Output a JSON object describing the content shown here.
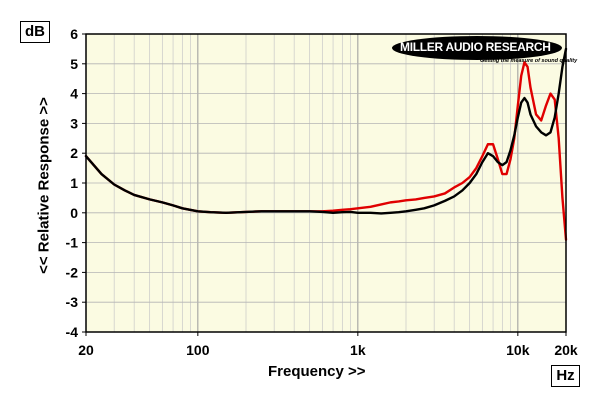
{
  "chart_data": {
    "type": "line",
    "ylabel": "<< Relative Response >>",
    "xlabel": "Frequency >>",
    "y_unit": "dB",
    "x_unit": "Hz",
    "x_scale": "log",
    "xlim": [
      20,
      20000
    ],
    "ylim": [
      -4,
      6
    ],
    "x_tick_labels": [
      {
        "value": 20,
        "label": "20"
      },
      {
        "value": 100,
        "label": "100"
      },
      {
        "value": 1000,
        "label": "1k"
      },
      {
        "value": 10000,
        "label": "10k"
      },
      {
        "value": 20000,
        "label": "20k"
      }
    ],
    "y_ticks": [
      -4,
      -3,
      -2,
      -1,
      0,
      1,
      2,
      3,
      4,
      5,
      6
    ],
    "grid": true,
    "series": [
      {
        "color": "#e00000",
        "x": [
          20,
          25,
          30,
          35,
          40,
          50,
          60,
          70,
          80,
          100,
          120,
          150,
          200,
          250,
          300,
          400,
          500,
          600,
          700,
          800,
          900,
          1000,
          1200,
          1400,
          1600,
          1800,
          2000,
          2300,
          2600,
          3000,
          3500,
          4000,
          4500,
          5000,
          5500,
          6000,
          6500,
          7000,
          7500,
          8000,
          8500,
          9000,
          9500,
          10000,
          10500,
          11000,
          11500,
          12000,
          13000,
          14000,
          15000,
          16000,
          17000,
          18000,
          19000,
          20000
        ],
        "values": [
          1.9,
          1.3,
          0.95,
          0.75,
          0.6,
          0.45,
          0.35,
          0.25,
          0.15,
          0.05,
          0.02,
          0.0,
          0.03,
          0.05,
          0.05,
          0.05,
          0.05,
          0.05,
          0.07,
          0.1,
          0.12,
          0.15,
          0.2,
          0.28,
          0.35,
          0.38,
          0.42,
          0.45,
          0.5,
          0.55,
          0.65,
          0.85,
          1.0,
          1.2,
          1.5,
          1.9,
          2.3,
          2.3,
          1.8,
          1.3,
          1.3,
          1.8,
          2.5,
          3.6,
          4.6,
          5.05,
          4.9,
          4.2,
          3.3,
          3.1,
          3.6,
          4.0,
          3.8,
          2.5,
          0.5,
          -0.9
        ]
      },
      {
        "color": "#000000",
        "x": [
          20,
          25,
          30,
          35,
          40,
          50,
          60,
          70,
          80,
          100,
          120,
          150,
          200,
          250,
          300,
          400,
          500,
          600,
          700,
          800,
          900,
          1000,
          1200,
          1400,
          1600,
          1800,
          2000,
          2300,
          2600,
          3000,
          3500,
          4000,
          4500,
          5000,
          5500,
          6000,
          6500,
          7000,
          7500,
          8000,
          8500,
          9000,
          9500,
          10000,
          10500,
          11000,
          11500,
          12000,
          13000,
          14000,
          15000,
          16000,
          17000,
          18000,
          19000,
          20000
        ],
        "values": [
          1.9,
          1.3,
          0.95,
          0.75,
          0.6,
          0.45,
          0.35,
          0.25,
          0.15,
          0.05,
          0.02,
          0.0,
          0.03,
          0.05,
          0.05,
          0.05,
          0.05,
          0.03,
          0.0,
          0.02,
          0.03,
          0.0,
          0.0,
          -0.02,
          0.0,
          0.02,
          0.05,
          0.1,
          0.15,
          0.25,
          0.4,
          0.55,
          0.75,
          1.0,
          1.3,
          1.7,
          2.0,
          1.9,
          1.7,
          1.6,
          1.7,
          2.1,
          2.6,
          3.2,
          3.7,
          3.85,
          3.7,
          3.3,
          2.9,
          2.7,
          2.6,
          2.7,
          3.2,
          4.0,
          4.9,
          5.5
        ]
      }
    ]
  },
  "logo": {
    "name": "MILLER AUDIO RESEARCH",
    "tagline": "Getting the measure of sound quality"
  }
}
